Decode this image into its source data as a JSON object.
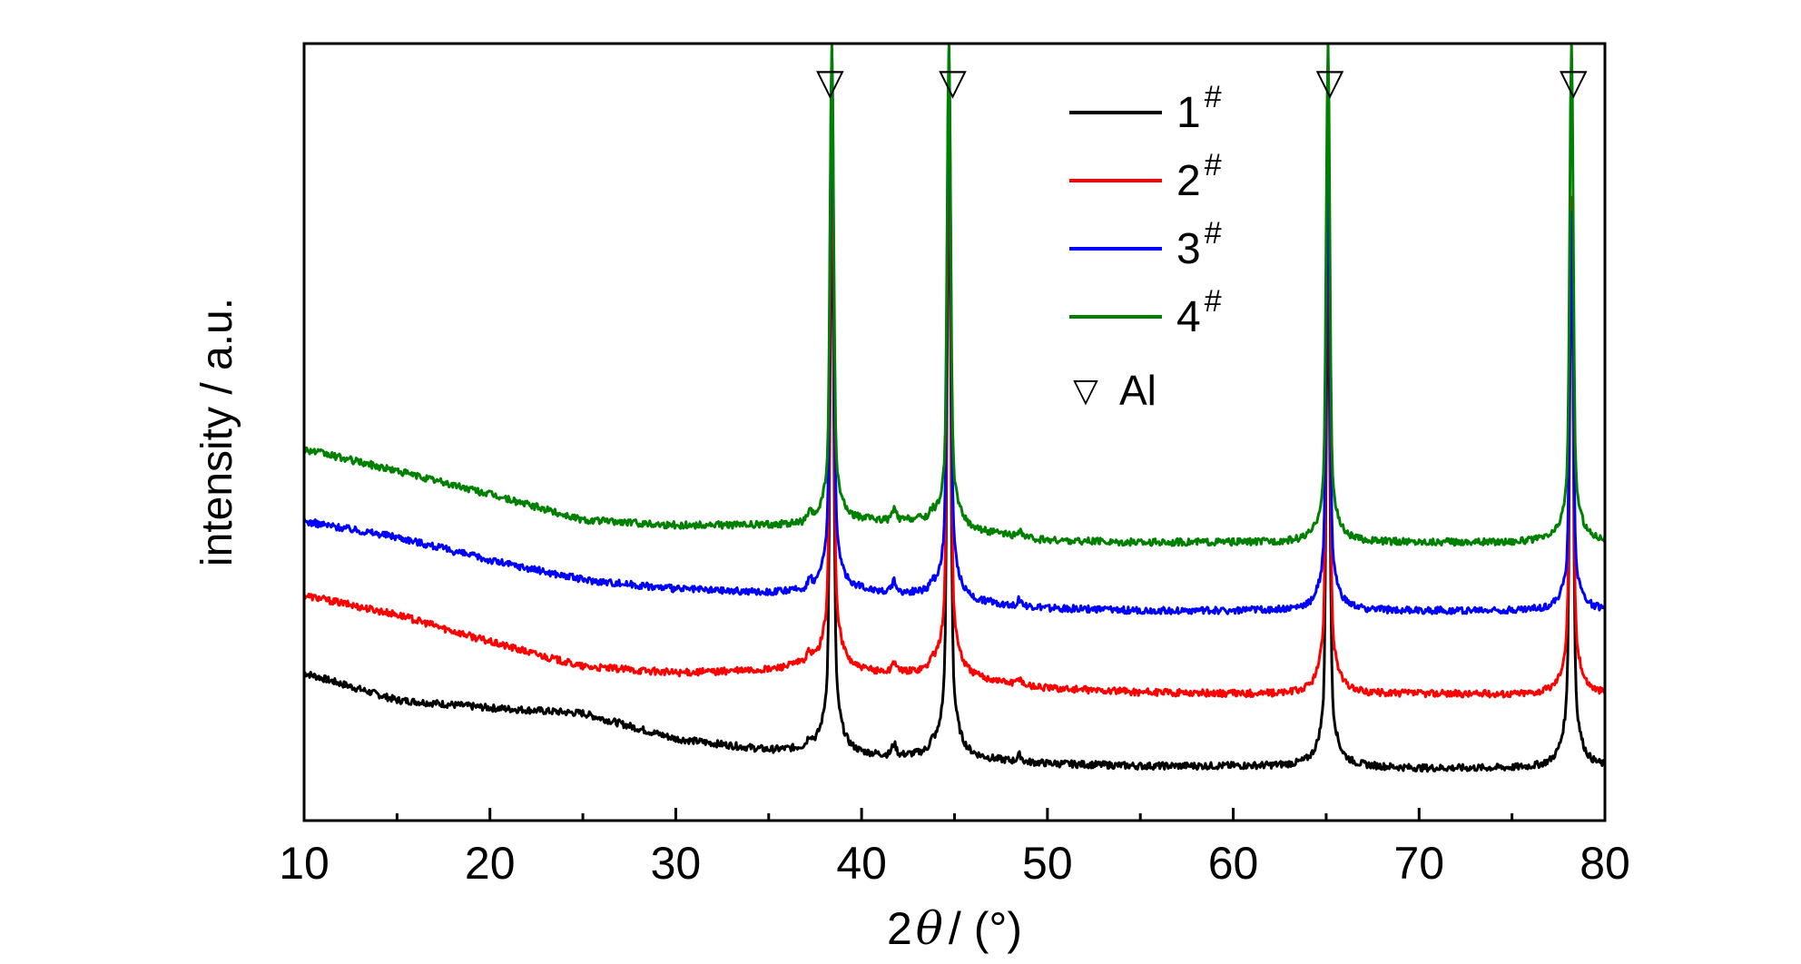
{
  "chart_data": {
    "type": "line",
    "xlabel_prefix": "2",
    "xlabel_symbol": "θ",
    "xlabel_suffix": "/ (°)",
    "ylabel": "intensity / a.u.",
    "xlim": [
      10,
      80
    ],
    "ylim": [
      0,
      100
    ],
    "x_ticks": [
      "10",
      "20",
      "30",
      "40",
      "50",
      "60",
      "70",
      "80"
    ],
    "y_ticks_visible": false,
    "grid": false,
    "legend_placement": "top-right",
    "series": [
      {
        "name": "1",
        "superscript": "#",
        "color": "#000000",
        "baseline": [
          [
            10,
            19
          ],
          [
            15,
            15.5
          ],
          [
            20,
            14.5
          ],
          [
            25,
            13.8
          ],
          [
            30,
            10.5
          ],
          [
            35,
            9
          ],
          [
            37,
            9
          ],
          [
            40,
            8.3
          ],
          [
            45,
            8
          ],
          [
            50,
            7.3
          ],
          [
            55,
            7
          ],
          [
            60,
            7
          ],
          [
            65,
            7
          ],
          [
            70,
            6.7
          ],
          [
            75,
            6.7
          ],
          [
            80,
            6.8
          ]
        ],
        "peaks": [
          [
            38.4,
            85
          ],
          [
            44.7,
            88
          ],
          [
            65.1,
            73
          ],
          [
            78.2,
            80
          ]
        ]
      },
      {
        "name": "2",
        "superscript": "#",
        "color": "#ff0000",
        "baseline": [
          [
            10,
            29
          ],
          [
            15,
            26.5
          ],
          [
            20,
            23
          ],
          [
            25,
            19.8
          ],
          [
            30,
            19
          ],
          [
            35,
            19.3
          ],
          [
            37,
            20
          ],
          [
            40,
            19
          ],
          [
            44,
            18.8
          ],
          [
            45,
            18.5
          ],
          [
            50,
            17
          ],
          [
            55,
            16.5
          ],
          [
            60,
            16.3
          ],
          [
            65,
            16.2
          ],
          [
            70,
            16.3
          ],
          [
            75,
            16.2
          ],
          [
            80,
            16.2
          ]
        ],
        "peaks": [
          [
            38.4,
            92
          ],
          [
            44.7,
            93
          ],
          [
            65.1,
            85
          ],
          [
            78.2,
            80
          ]
        ]
      },
      {
        "name": "3",
        "superscript": "#",
        "color": "#0000ff",
        "baseline": [
          [
            10,
            38.5
          ],
          [
            15,
            36.5
          ],
          [
            20,
            33.5
          ],
          [
            25,
            31
          ],
          [
            30,
            29.8
          ],
          [
            35,
            29.3
          ],
          [
            37,
            29.3
          ],
          [
            40,
            29.5
          ],
          [
            43,
            29
          ],
          [
            45,
            28.2
          ],
          [
            50,
            27.3
          ],
          [
            55,
            27
          ],
          [
            60,
            27
          ],
          [
            65,
            27
          ],
          [
            70,
            27
          ],
          [
            75,
            27
          ],
          [
            80,
            27
          ]
        ],
        "peaks": [
          [
            38.4,
            99
          ],
          [
            44.7,
            99
          ],
          [
            65.1,
            88
          ],
          [
            78.2,
            78
          ]
        ]
      },
      {
        "name": "4",
        "superscript": "#",
        "color": "#008000",
        "baseline": [
          [
            10,
            47.8
          ],
          [
            15,
            45
          ],
          [
            20,
            42
          ],
          [
            25,
            38.7
          ],
          [
            30,
            38
          ],
          [
            35,
            38
          ],
          [
            37,
            38
          ],
          [
            40,
            38.5
          ],
          [
            43,
            38.5
          ],
          [
            45,
            37.5
          ],
          [
            50,
            36
          ],
          [
            55,
            35.8
          ],
          [
            60,
            35.8
          ],
          [
            65,
            35.8
          ],
          [
            70,
            35.8
          ],
          [
            75,
            35.8
          ],
          [
            80,
            35.9
          ]
        ],
        "peaks": [
          [
            38.4,
            100
          ],
          [
            44.7,
            100
          ],
          [
            65.1,
            100
          ],
          [
            78.2,
            100
          ]
        ]
      }
    ],
    "markers": {
      "symbol": "▽",
      "label": "Al",
      "positions": [
        38.3,
        44.9,
        65.2,
        78.3
      ]
    }
  }
}
